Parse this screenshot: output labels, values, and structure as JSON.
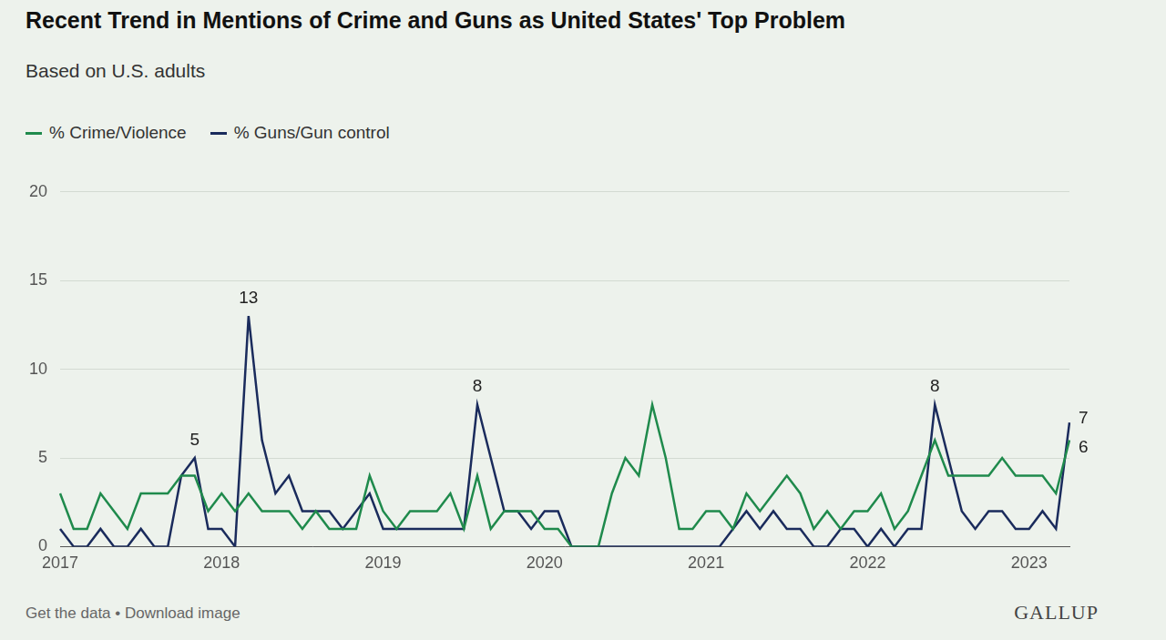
{
  "chart_data": {
    "type": "line",
    "title": "Recent Trend in Mentions of Crime and Guns as United States' Top Problem",
    "subtitle": "Based on U.S. adults",
    "footer": "Get the data • Download image",
    "source": "GALLUP",
    "categories": [
      "2017",
      null,
      null,
      null,
      null,
      null,
      null,
      null,
      null,
      null,
      null,
      null,
      "2018",
      null,
      null,
      null,
      null,
      null,
      null,
      null,
      null,
      null,
      null,
      null,
      "2019",
      null,
      null,
      null,
      null,
      null,
      null,
      null,
      null,
      null,
      null,
      null,
      "2020",
      null,
      null,
      null,
      null,
      null,
      null,
      null,
      null,
      null,
      null,
      null,
      "2021",
      null,
      null,
      null,
      null,
      null,
      null,
      null,
      null,
      null,
      null,
      null,
      "2022",
      null,
      null,
      null,
      null,
      null,
      null,
      null,
      null,
      null,
      null,
      null,
      "2023",
      null,
      null,
      null
    ],
    "series": [
      {
        "name": "% Crime/Violence",
        "color": "#1f8a4c",
        "values": [
          3,
          1,
          1,
          3,
          2,
          1,
          3,
          3,
          3,
          4,
          4,
          2,
          3,
          2,
          3,
          2,
          2,
          2,
          1,
          2,
          1,
          1,
          1,
          4,
          2,
          1,
          2,
          2,
          2,
          3,
          1,
          4,
          1,
          2,
          2,
          2,
          1,
          1,
          0,
          0,
          0,
          3,
          5,
          4,
          8,
          5,
          1,
          1,
          2,
          2,
          1,
          3,
          2,
          3,
          4,
          3,
          1,
          2,
          1,
          2,
          2,
          3,
          1,
          2,
          4,
          6,
          4,
          4,
          4,
          4,
          5,
          4,
          4,
          4,
          3,
          6
        ]
      },
      {
        "name": "% Guns/Gun control",
        "color": "#1a2b5c",
        "values": [
          1,
          0,
          0,
          1,
          0,
          0,
          1,
          0,
          0,
          4,
          5,
          1,
          1,
          0,
          13,
          6,
          3,
          4,
          2,
          2,
          2,
          1,
          2,
          3,
          1,
          1,
          1,
          1,
          1,
          1,
          1,
          8,
          5,
          2,
          2,
          1,
          2,
          2,
          0,
          0,
          0,
          0,
          0,
          0,
          0,
          0,
          0,
          0,
          0,
          0,
          1,
          2,
          1,
          2,
          1,
          1,
          0,
          0,
          1,
          1,
          0,
          1,
          0,
          1,
          1,
          8,
          5,
          2,
          1,
          2,
          2,
          1,
          1,
          2,
          1,
          7
        ]
      }
    ],
    "annotations": [
      {
        "series": "% Guns/Gun control",
        "point": 10,
        "text": "5"
      },
      {
        "series": "% Guns/Gun control",
        "point": 14,
        "text": "13"
      },
      {
        "series": "% Guns/Gun control",
        "point": 31,
        "text": "8"
      },
      {
        "series": "% Guns/Gun control",
        "point": 65,
        "text": "8"
      },
      {
        "series": "% Guns/Gun control",
        "point": 75,
        "text": "7"
      },
      {
        "series": "% Crime/Violence",
        "point": 75,
        "text": "6"
      }
    ],
    "ylim": [
      0,
      20
    ],
    "yticks": [
      0,
      5,
      10,
      15,
      20
    ],
    "grid": true,
    "legend": "top-left"
  }
}
